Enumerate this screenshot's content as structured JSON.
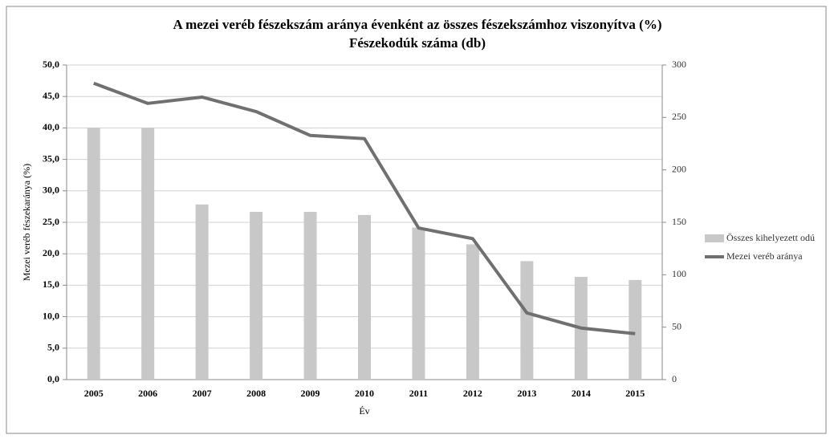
{
  "chart_data": {
    "type": "bar",
    "title": "A mezei veréb fészekszám aránya évenként az összes fészekszámhoz viszonyítva (%)",
    "subtitle": "Fészekodúk száma (db)",
    "x_label": "Év",
    "y_label": "Mezei veréb fészekaránya (%)",
    "categories": [
      "2005",
      "2006",
      "2007",
      "2008",
      "2009",
      "2010",
      "2011",
      "2012",
      "2013",
      "2014",
      "2015"
    ],
    "series": [
      {
        "name": "Összes kihelyezett odú",
        "type": "bar",
        "axis": "y2",
        "color": "#c8c8c8",
        "values": [
          240,
          240,
          167,
          160,
          160,
          157,
          145,
          129,
          113,
          98,
          95
        ]
      },
      {
        "name": "Mezei veréb aránya",
        "type": "line",
        "axis": "y",
        "color": "#707070",
        "values": [
          47.1,
          43.9,
          44.9,
          42.6,
          38.8,
          38.3,
          24.1,
          22.4,
          10.6,
          8.2,
          7.3
        ]
      }
    ],
    "ylim": [
      0,
      50
    ],
    "yticks": [
      {
        "value": 0,
        "label": "0,0"
      },
      {
        "value": 5,
        "label": "5,0"
      },
      {
        "value": 10,
        "label": "10,0"
      },
      {
        "value": 15,
        "label": "15,0"
      },
      {
        "value": 20,
        "label": "20,0"
      },
      {
        "value": 25,
        "label": "25,0"
      },
      {
        "value": 30,
        "label": "30,0"
      },
      {
        "value": 35,
        "label": "35,0"
      },
      {
        "value": 40,
        "label": "40,0"
      },
      {
        "value": 45,
        "label": "45,0"
      },
      {
        "value": 50,
        "label": "50,0"
      }
    ],
    "y2lim": [
      0,
      300
    ],
    "y2ticks": [
      0,
      50,
      100,
      150,
      200,
      250,
      300
    ],
    "grid": true,
    "legend": "right"
  }
}
